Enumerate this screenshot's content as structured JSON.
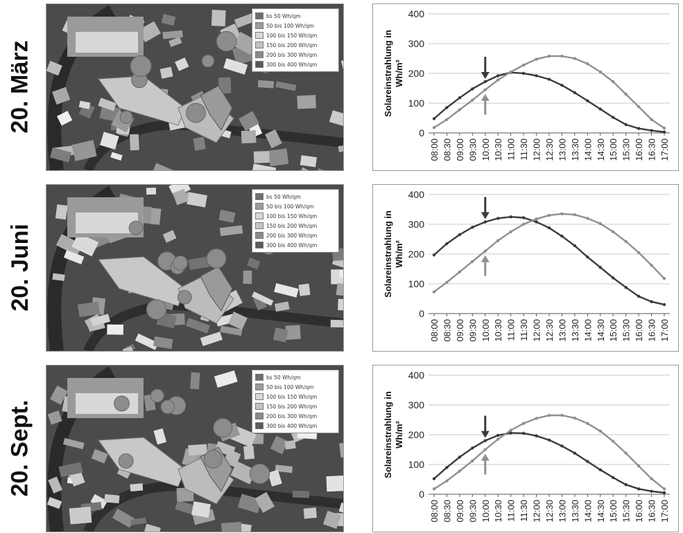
{
  "rows": [
    {
      "label": "20. März",
      "legend": [
        "bs 50 Wh/qm",
        "50 bis 100 Wh/qm",
        "100 bis 150 Wh/qm",
        "150 bis 200 Wh/qm",
        "200 bis 300 Wh/qm",
        "300 bis 400 Wh/qm"
      ],
      "chart_data": {
        "type": "line",
        "ylabel": "Solareinstrahlung in Wh/m²",
        "ylim": [
          0,
          400
        ],
        "yticks": [
          0,
          100,
          200,
          300,
          400
        ],
        "x": [
          "08:00",
          "08:30",
          "09:00",
          "09:30",
          "10:00",
          "10:30",
          "11:00",
          "11:30",
          "12:00",
          "12:30",
          "13:00",
          "13:30",
          "14:00",
          "14:30",
          "15:00",
          "15:30",
          "16:00",
          "16:30",
          "17:00"
        ],
        "grid": true,
        "series": [
          {
            "color": "#3a3a3a",
            "values": [
              48,
              85,
              118,
              148,
              172,
              192,
              203,
              200,
              192,
              180,
              160,
              135,
              108,
              80,
              52,
              28,
              15,
              8,
              3
            ]
          },
          {
            "color": "#8f8f8f",
            "values": [
              18,
              45,
              78,
              110,
              145,
              178,
              205,
              228,
              248,
              258,
              258,
              250,
              232,
              205,
              172,
              130,
              88,
              45,
              16
            ]
          }
        ],
        "arrows": [
          {
            "x_index": 4,
            "direction": "down"
          },
          {
            "x_index": 4,
            "direction": "up"
          }
        ]
      }
    },
    {
      "label": "20. Juni",
      "legend": [
        "bs 50 Wh/qm",
        "50 bis 100 Wh/qm",
        "100 bis 150 Wh/qm",
        "150 bis 200 Wh/qm",
        "200 bis 300 Wh/qm",
        "300 bis 400 Wh/qm"
      ],
      "chart_data": {
        "type": "line",
        "ylabel": "Solareinstrahlung in Wh/m²",
        "ylim": [
          0,
          400
        ],
        "yticks": [
          0,
          100,
          200,
          300,
          400
        ],
        "x": [
          "08:00",
          "08:30",
          "09:00",
          "09:30",
          "10:00",
          "10:30",
          "11:00",
          "11:30",
          "12:00",
          "12:30",
          "13:00",
          "13:30",
          "14:00",
          "14:30",
          "15:00",
          "15:30",
          "16:00",
          "16:30",
          "17:00"
        ],
        "grid": true,
        "series": [
          {
            "color": "#3a3a3a",
            "values": [
              197,
              235,
              265,
              290,
              308,
              320,
              325,
              322,
              308,
              288,
              260,
              228,
              190,
              155,
              120,
              88,
              58,
              40,
              30
            ]
          },
          {
            "color": "#8f8f8f",
            "values": [
              73,
              105,
              140,
              175,
              210,
              245,
              275,
              300,
              318,
              330,
              335,
              332,
              320,
              302,
              275,
              242,
              205,
              162,
              118
            ]
          }
        ],
        "arrows": [
          {
            "x_index": 4,
            "direction": "down"
          },
          {
            "x_index": 4,
            "direction": "up"
          }
        ]
      }
    },
    {
      "label": "20. Sept.",
      "legend": [
        "bs 50 Wh/qm",
        "50 bis 100 Wh/qm",
        "100 bis 150 Wh/qm",
        "150 bis 200 Wh/qm",
        "200 bis 300 Wh/qm",
        "300 bis 400 Wh/qm"
      ],
      "chart_data": {
        "type": "line",
        "ylabel": "Solareinstrahlung in Wh/m²",
        "ylim": [
          0,
          400
        ],
        "yticks": [
          0,
          100,
          200,
          300,
          400
        ],
        "x": [
          "08:00",
          "08:30",
          "09:00",
          "09:30",
          "10:00",
          "10:30",
          "11:00",
          "11:30",
          "12:00",
          "12:30",
          "13:00",
          "13:30",
          "14:00",
          "14:30",
          "15:00",
          "15:30",
          "16:00",
          "16:30",
          "17:00"
        ],
        "grid": true,
        "series": [
          {
            "color": "#3a3a3a",
            "values": [
              52,
              90,
              125,
              155,
              180,
              198,
              206,
              205,
              196,
              182,
              162,
              138,
              110,
              82,
              56,
              32,
              18,
              10,
              5
            ]
          },
          {
            "color": "#8f8f8f",
            "values": [
              18,
              45,
              78,
              112,
              150,
              185,
              215,
              238,
              255,
              265,
              265,
              256,
              238,
              212,
              178,
              138,
              95,
              52,
              18
            ]
          }
        ],
        "arrows": [
          {
            "x_index": 4,
            "direction": "down"
          },
          {
            "x_index": 4,
            "direction": "up"
          }
        ]
      }
    }
  ],
  "colors": {
    "series_dark": "#3a3a3a",
    "series_light": "#8f8f8f",
    "arrow_dark": "#3a3a3a",
    "arrow_light": "#8f8f8f",
    "gridline": "#c8c8c8",
    "legend_swatches": [
      "#6e6e6e",
      "#9c9c9c",
      "#d8d8d8",
      "#c4c4c4",
      "#8a8a8a",
      "#5a5a5a"
    ]
  }
}
